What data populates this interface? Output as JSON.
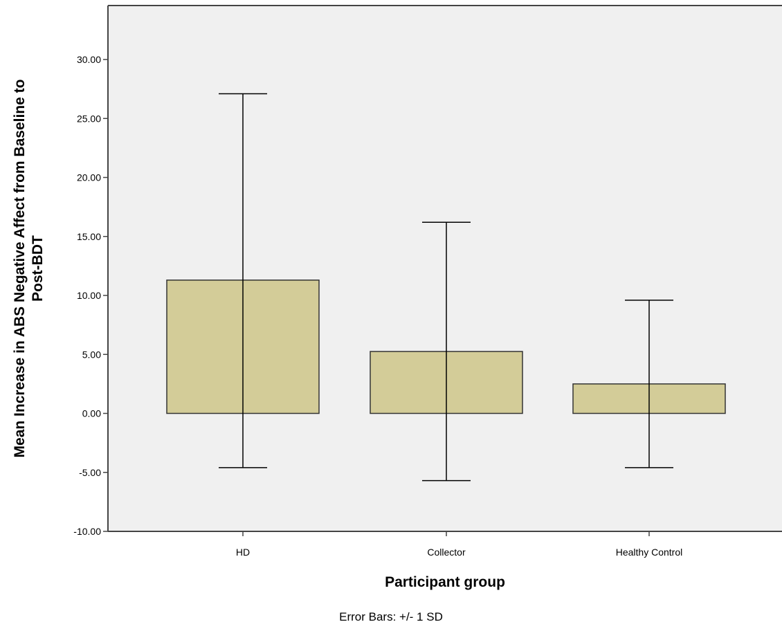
{
  "chart_data": {
    "type": "bar",
    "categories": [
      "HD",
      "Collector",
      "Healthy Control"
    ],
    "values": [
      11.3,
      5.25,
      2.5
    ],
    "error_bars": {
      "type": "+/- 1 SD",
      "upper": [
        27.1,
        16.2,
        9.6
      ],
      "lower": [
        -4.6,
        -5.7,
        -4.6
      ]
    },
    "xlabel": "Participant group",
    "ylabel": "Mean Increase in ABS Negative Affect from Baseline to Post-BDT",
    "ylabel_lines": [
      "Mean Increase in ABS Negative Affect from Baseline to",
      "Post-BDT"
    ],
    "ylim": [
      -10,
      35
    ],
    "yticks": [
      "-10.00",
      "-5.00",
      "0.00",
      "5.00",
      "10.00",
      "15.00",
      "20.00",
      "25.00",
      "30.00"
    ],
    "footnote": "Error Bars: +/- 1 SD",
    "grid": false,
    "colors": {
      "bar_fill": "#d3cc98",
      "plot_background": "#f0f0f0",
      "line": "#000000"
    }
  }
}
